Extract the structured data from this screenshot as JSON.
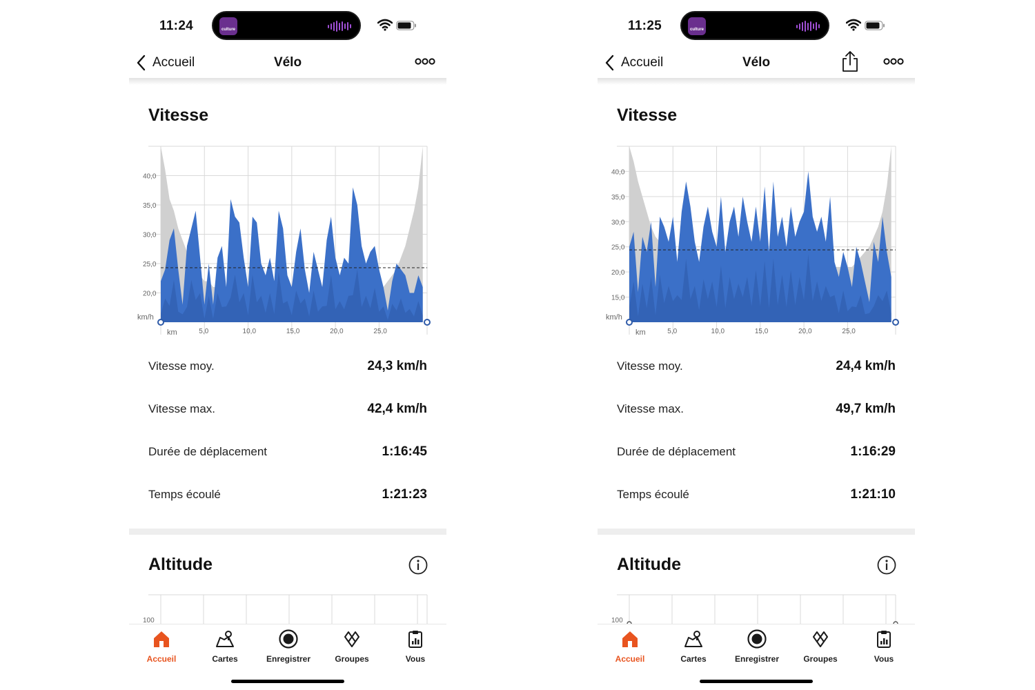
{
  "phones": [
    {
      "status_time": "11:24",
      "island_app": "culture",
      "nav": {
        "back_label": "Accueil",
        "title": "Vélo",
        "has_share": false
      },
      "speed": {
        "title": "Vitesse",
        "y_unit": "km/h",
        "x_unit": "km",
        "y_ticks": [
          "40,0",
          "35,0",
          "30,0",
          "25,0",
          "20,0"
        ],
        "x_ticks": [
          "5,0",
          "10,0",
          "15,0",
          "20,0",
          "25,0"
        ],
        "average_line": 24.3,
        "stats": [
          {
            "label": "Vitesse moy.",
            "value": "24,3 km/h"
          },
          {
            "label": "Vitesse max.",
            "value": "42,4 km/h"
          },
          {
            "label": "Durée de déplacement",
            "value": "1:16:45"
          },
          {
            "label": "Temps écoulé",
            "value": "1:21:23"
          }
        ]
      },
      "altitude": {
        "title": "Altitude",
        "y_tick": "100"
      }
    },
    {
      "status_time": "11:25",
      "island_app": "culture",
      "nav": {
        "back_label": "Accueil",
        "title": "Vélo",
        "has_share": true
      },
      "speed": {
        "title": "Vitesse",
        "y_unit": "km/h",
        "x_unit": "km",
        "y_ticks": [
          "40,0",
          "35,0",
          "30,0",
          "25,0",
          "20,0",
          "15,0"
        ],
        "x_ticks": [
          "5,0",
          "10,0",
          "15,0",
          "20,0",
          "25,0"
        ],
        "average_line": 24.4,
        "stats": [
          {
            "label": "Vitesse moy.",
            "value": "24,4 km/h"
          },
          {
            "label": "Vitesse max.",
            "value": "49,7 km/h"
          },
          {
            "label": "Durée de déplacement",
            "value": "1:16:29"
          },
          {
            "label": "Temps écoulé",
            "value": "1:21:10"
          }
        ]
      },
      "altitude": {
        "title": "Altitude",
        "y_tick": "100"
      }
    }
  ],
  "tabbar": [
    {
      "label": "Accueil",
      "icon": "home-icon",
      "active": true
    },
    {
      "label": "Cartes",
      "icon": "map-icon",
      "active": false
    },
    {
      "label": "Enregistrer",
      "icon": "record-icon",
      "active": false
    },
    {
      "label": "Groupes",
      "icon": "groups-icon",
      "active": false
    },
    {
      "label": "Vous",
      "icon": "clipboard-icon",
      "active": false
    }
  ],
  "colors": {
    "accent": "#e8541f",
    "speed_fill": "#3b70c8",
    "speed_fill_dark": "#2e5aa8",
    "background_area": "#d0d0d0",
    "grid": "#d9d9d9"
  },
  "chart_data": [
    {
      "type": "area",
      "x_unit": "km",
      "y_unit": "km/h",
      "xlim": [
        0,
        30.5
      ],
      "ylim": [
        15,
        45
      ],
      "grid": true,
      "average": 24.3,
      "x": [
        0,
        0.5,
        1,
        1.5,
        2,
        2.5,
        3,
        3.5,
        4,
        4.5,
        5,
        5.5,
        6,
        6.5,
        7,
        7.5,
        8,
        8.5,
        9,
        9.5,
        10,
        10.5,
        11,
        11.5,
        12,
        12.5,
        13,
        13.5,
        14,
        14.5,
        15,
        15.5,
        16,
        16.5,
        17,
        17.5,
        18,
        18.5,
        19,
        19.5,
        20,
        20.5,
        21,
        21.5,
        22,
        22.5,
        23,
        23.5,
        24,
        24.5,
        25,
        25.5,
        26,
        26.5,
        27,
        27.5,
        28,
        28.5,
        29,
        29.5,
        30
      ],
      "speed": [
        22,
        24,
        29,
        31,
        24,
        18,
        28,
        31,
        34,
        26,
        18,
        25,
        18,
        26,
        28,
        21,
        36,
        33,
        32,
        26,
        21,
        33,
        32,
        25,
        23,
        26,
        22,
        34,
        31,
        23,
        21,
        27,
        31,
        24,
        20,
        27,
        24,
        21,
        29,
        33,
        26,
        23,
        26,
        25,
        38,
        35,
        28,
        25,
        27,
        28,
        24,
        21,
        17,
        22,
        25,
        24,
        23,
        20,
        20,
        23,
        21
      ],
      "background": [
        45,
        41,
        36,
        34,
        31,
        29,
        27,
        25,
        24,
        23,
        22,
        22,
        21,
        21,
        21,
        20,
        20,
        20,
        20,
        20,
        20,
        20,
        20,
        20,
        20,
        20,
        20,
        20,
        20,
        20,
        20,
        20,
        20,
        20,
        20,
        20,
        20,
        20,
        20,
        20,
        20,
        20,
        20,
        20,
        20,
        20,
        20,
        20,
        20,
        21,
        21,
        21,
        22,
        23,
        24,
        26,
        28,
        31,
        34,
        38,
        45
      ]
    },
    {
      "type": "area",
      "x_unit": "km",
      "y_unit": "km/h",
      "xlim": [
        0,
        30.5
      ],
      "ylim": [
        10,
        45
      ],
      "grid": true,
      "average": 24.4,
      "x": [
        0,
        0.5,
        1,
        1.5,
        2,
        2.5,
        3,
        3.5,
        4,
        4.5,
        5,
        5.5,
        6,
        6.5,
        7,
        7.5,
        8,
        8.5,
        9,
        9.5,
        10,
        10.5,
        11,
        11.5,
        12,
        12.5,
        13,
        13.5,
        14,
        14.5,
        15,
        15.5,
        16,
        16.5,
        17,
        17.5,
        18,
        18.5,
        19,
        19.5,
        20,
        20.5,
        21,
        21.5,
        22,
        22.5,
        23,
        23.5,
        24,
        24.5,
        25,
        25.5,
        26,
        26.5,
        27,
        27.5,
        28,
        28.5,
        29,
        29.5,
        30
      ],
      "speed": [
        25,
        28,
        16,
        27,
        24,
        30,
        17,
        31,
        29,
        26,
        31,
        22,
        32,
        38,
        33,
        26,
        22,
        29,
        33,
        28,
        25,
        35,
        24,
        30,
        33,
        27,
        35,
        30,
        26,
        33,
        26,
        37,
        24,
        38,
        27,
        31,
        25,
        33,
        27,
        30,
        32,
        40,
        31,
        28,
        31,
        26,
        35,
        22,
        19,
        24,
        21,
        17,
        25,
        22,
        18,
        14,
        26,
        22,
        31,
        24,
        19
      ],
      "background": [
        45,
        42,
        38,
        35,
        32,
        29,
        27,
        26,
        25,
        24,
        23,
        22,
        22,
        21,
        21,
        21,
        21,
        21,
        21,
        21,
        21,
        21,
        21,
        21,
        21,
        21,
        21,
        21,
        21,
        21,
        21,
        21,
        21,
        21,
        21,
        21,
        21,
        21,
        21,
        21,
        21,
        21,
        21,
        21,
        21,
        21,
        21,
        21,
        21,
        21,
        21,
        21,
        22,
        23,
        24,
        25,
        27,
        29,
        32,
        37,
        45
      ]
    }
  ]
}
